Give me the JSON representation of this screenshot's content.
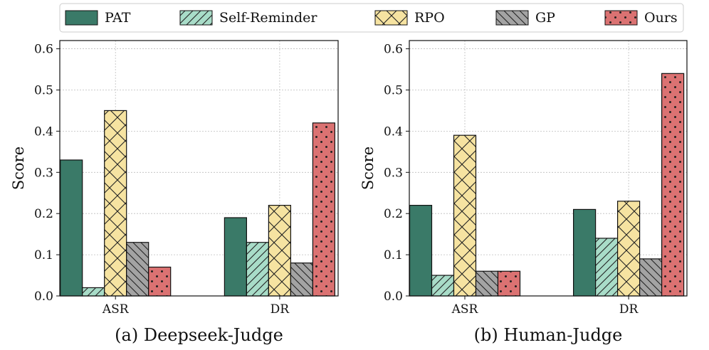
{
  "legend": [
    {
      "name": "PAT",
      "color": "#3a7a68",
      "pattern": "none"
    },
    {
      "name": "Self-Reminder",
      "color": "#a8dcc8",
      "pattern": "diag"
    },
    {
      "name": "RPO",
      "color": "#f6e3a1",
      "pattern": "cross"
    },
    {
      "name": "GP",
      "color": "#a3a3a3",
      "pattern": "diag-back"
    },
    {
      "name": "Ours",
      "color": "#db7272",
      "pattern": "dots"
    }
  ],
  "chart_data": [
    {
      "type": "bar",
      "title": "(a) Deepseek-Judge",
      "xlabel": "",
      "ylabel": "Score",
      "ylim": [
        0,
        0.62
      ],
      "yticks": [
        "0.0",
        "0.1",
        "0.2",
        "0.3",
        "0.4",
        "0.5",
        "0.6"
      ],
      "categories": [
        "ASR",
        "DR"
      ],
      "series": [
        {
          "name": "PAT",
          "values": [
            0.33,
            0.19
          ]
        },
        {
          "name": "Self-Reminder",
          "values": [
            0.02,
            0.13
          ]
        },
        {
          "name": "RPO",
          "values": [
            0.45,
            0.22
          ]
        },
        {
          "name": "GP",
          "values": [
            0.13,
            0.08
          ]
        },
        {
          "name": "Ours",
          "values": [
            0.07,
            0.42
          ]
        }
      ],
      "grid": true
    },
    {
      "type": "bar",
      "title": "(b) Human-Judge",
      "xlabel": "",
      "ylabel": "Score",
      "ylim": [
        0,
        0.62
      ],
      "yticks": [
        "0.0",
        "0.1",
        "0.2",
        "0.3",
        "0.4",
        "0.5",
        "0.6"
      ],
      "categories": [
        "ASR",
        "DR"
      ],
      "series": [
        {
          "name": "PAT",
          "values": [
            0.22,
            0.21
          ]
        },
        {
          "name": "Self-Reminder",
          "values": [
            0.05,
            0.14
          ]
        },
        {
          "name": "RPO",
          "values": [
            0.39,
            0.23
          ]
        },
        {
          "name": "GP",
          "values": [
            0.06,
            0.09
          ]
        },
        {
          "name": "Ours",
          "values": [
            0.06,
            0.54
          ]
        }
      ],
      "grid": true
    }
  ]
}
